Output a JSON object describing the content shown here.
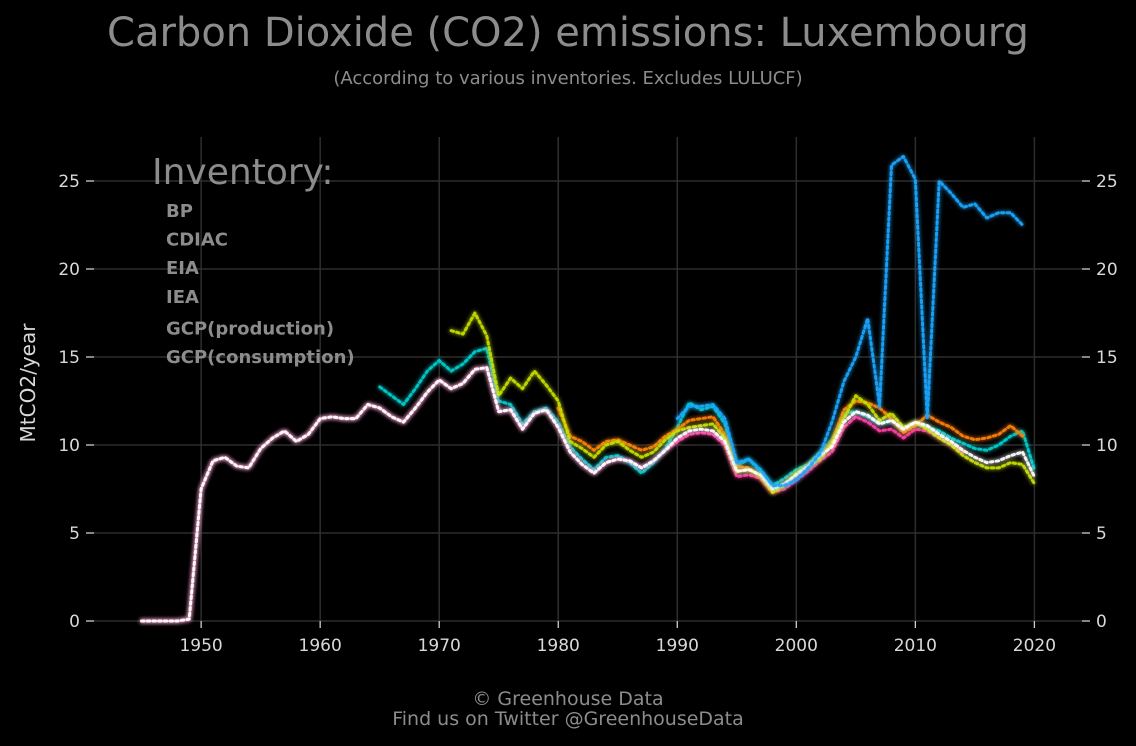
{
  "header": {
    "title": "Carbon Dioxide (CO2) emissions: Luxembourg",
    "subtitle": "(According to various inventories. Excludes LULUCF)"
  },
  "footer": {
    "line1": "© Greenhouse Data",
    "line2": "Find us on Twitter @GreenhouseData"
  },
  "chart_data": {
    "type": "line",
    "ylabel": "MtCO2/year",
    "xlim": [
      1941,
      2024
    ],
    "ylim": [
      0,
      27.5
    ],
    "x_ticks": [
      1950,
      1960,
      1970,
      1980,
      1990,
      2000,
      2010,
      2020
    ],
    "y_ticks": [
      0,
      5,
      10,
      15,
      20,
      25
    ],
    "grid": true,
    "line_style": "dotted",
    "legend": {
      "title": "Inventory:",
      "position": "top-left"
    },
    "series": [
      {
        "name": "BP",
        "color": "#00cfcf",
        "x": [
          1965,
          1966,
          1967,
          1968,
          1969,
          1970,
          1971,
          1972,
          1973,
          1974,
          1975,
          1976,
          1977,
          1978,
          1979,
          1980,
          1981,
          1982,
          1983,
          1984,
          1985,
          1986,
          1987,
          1988,
          1989,
          1990,
          1991,
          1992,
          1993,
          1994,
          1995,
          1996,
          1997,
          1998,
          1999,
          2000,
          2001,
          2002,
          2003,
          2004,
          2005,
          2006,
          2007,
          2008,
          2009,
          2010,
          2011,
          2012,
          2013,
          2014,
          2015,
          2016,
          2017,
          2018,
          2019,
          2020
        ],
        "y": [
          13.3,
          12.8,
          12.3,
          13.2,
          14.2,
          14.8,
          14.2,
          14.6,
          15.3,
          15.5,
          12.5,
          12.3,
          11.2,
          11.9,
          12.1,
          11.3,
          9.9,
          9.2,
          8.6,
          9.3,
          9.4,
          9.0,
          8.4,
          9.0,
          9.8,
          11.0,
          12.4,
          12.0,
          12.2,
          11.2,
          8.8,
          9.2,
          8.5,
          7.7,
          8.1,
          8.6,
          8.9,
          9.6,
          10.3,
          11.8,
          11.9,
          11.6,
          11.2,
          11.4,
          10.8,
          11.2,
          11.0,
          10.8,
          10.4,
          10.1,
          9.8,
          9.7,
          10.0,
          10.5,
          10.8,
          8.6
        ]
      },
      {
        "name": "CDIAC",
        "color": "#ff3fa4",
        "x": [
          1945,
          1946,
          1947,
          1948,
          1949,
          1950,
          1951,
          1952,
          1953,
          1954,
          1955,
          1956,
          1957,
          1958,
          1959,
          1960,
          1961,
          1962,
          1963,
          1964,
          1965,
          1966,
          1967,
          1968,
          1969,
          1970,
          1971,
          1972,
          1973,
          1974,
          1975,
          1976,
          1977,
          1978,
          1979,
          1980,
          1981,
          1982,
          1983,
          1984,
          1985,
          1986,
          1987,
          1988,
          1989,
          1990,
          1991,
          1992,
          1993,
          1994,
          1995,
          1996,
          1997,
          1998,
          1999,
          2000,
          2001,
          2002,
          2003,
          2004,
          2005,
          2006,
          2007,
          2008,
          2009,
          2010,
          2011,
          2012,
          2013,
          2014
        ],
        "y": [
          0.0,
          0.0,
          0.0,
          0.0,
          0.1,
          7.5,
          9.1,
          9.3,
          8.8,
          8.7,
          9.8,
          10.4,
          10.8,
          10.2,
          10.6,
          11.5,
          11.6,
          11.5,
          11.5,
          12.3,
          12.1,
          11.6,
          11.3,
          12.1,
          13.0,
          13.7,
          13.2,
          13.5,
          14.3,
          14.4,
          11.9,
          12.0,
          10.9,
          11.8,
          12.0,
          11.0,
          9.6,
          8.9,
          8.4,
          9.0,
          9.2,
          9.1,
          8.7,
          9.1,
          9.7,
          10.2,
          10.6,
          10.7,
          10.6,
          10.0,
          8.2,
          8.3,
          8.1,
          7.3,
          7.5,
          8.0,
          8.5,
          9.1,
          9.6,
          11.0,
          11.6,
          11.3,
          10.8,
          10.9,
          10.4,
          10.9,
          10.8,
          10.4,
          10.0,
          9.6
        ]
      },
      {
        "name": "EIA",
        "color": "#ff7f0e",
        "x": [
          1980,
          1981,
          1982,
          1983,
          1984,
          1985,
          1986,
          1987,
          1988,
          1989,
          1990,
          1991,
          1992,
          1993,
          1994,
          1995,
          1996,
          1997,
          1998,
          1999,
          2000,
          2001,
          2002,
          2003,
          2004,
          2005,
          2006,
          2007,
          2008,
          2009,
          2010,
          2011,
          2012,
          2013,
          2014,
          2015,
          2016,
          2017,
          2018,
          2019
        ],
        "y": [
          12.1,
          10.5,
          10.2,
          9.7,
          10.2,
          10.3,
          10.0,
          9.7,
          9.9,
          10.5,
          10.9,
          11.4,
          11.5,
          11.6,
          10.6,
          8.8,
          8.7,
          8.2,
          7.4,
          7.8,
          8.3,
          8.8,
          9.4,
          10.2,
          12.0,
          12.5,
          12.4,
          12.1,
          11.5,
          10.7,
          11.1,
          11.7,
          11.3,
          11.0,
          10.5,
          10.3,
          10.4,
          10.6,
          11.1,
          10.5
        ]
      },
      {
        "name": "IEA",
        "color": "#c8e000",
        "x": [
          1971,
          1972,
          1973,
          1974,
          1975,
          1976,
          1977,
          1978,
          1979,
          1980,
          1981,
          1982,
          1983,
          1984,
          1985,
          1986,
          1987,
          1988,
          1989,
          1990,
          1991,
          1992,
          1993,
          1994,
          1995,
          1996,
          1997,
          1998,
          1999,
          2000,
          2001,
          2002,
          2003,
          2004,
          2005,
          2006,
          2007,
          2008,
          2009,
          2010,
          2011,
          2012,
          2013,
          2014,
          2015,
          2016,
          2017,
          2018,
          2019,
          2020
        ],
        "y": [
          16.5,
          16.3,
          17.5,
          16.2,
          12.8,
          13.8,
          13.2,
          14.2,
          13.4,
          12.5,
          10.2,
          9.8,
          9.3,
          10.0,
          10.2,
          9.7,
          9.3,
          9.6,
          10.3,
          10.8,
          11.0,
          11.1,
          11.2,
          10.4,
          8.5,
          8.6,
          8.3,
          7.3,
          7.7,
          8.4,
          8.8,
          9.2,
          10.1,
          11.5,
          12.8,
          12.3,
          11.4,
          11.8,
          11.0,
          11.3,
          10.9,
          10.4,
          10.0,
          9.4,
          9.0,
          8.7,
          8.7,
          9.0,
          8.9,
          7.8
        ]
      },
      {
        "name": "GCP(production)",
        "color": "#ffffff",
        "x": [
          1945,
          1946,
          1947,
          1948,
          1949,
          1950,
          1951,
          1952,
          1953,
          1954,
          1955,
          1956,
          1957,
          1958,
          1959,
          1960,
          1961,
          1962,
          1963,
          1964,
          1965,
          1966,
          1967,
          1968,
          1969,
          1970,
          1971,
          1972,
          1973,
          1974,
          1975,
          1976,
          1977,
          1978,
          1979,
          1980,
          1981,
          1982,
          1983,
          1984,
          1985,
          1986,
          1987,
          1988,
          1989,
          1990,
          1991,
          1992,
          1993,
          1994,
          1995,
          1996,
          1997,
          1998,
          1999,
          2000,
          2001,
          2002,
          2003,
          2004,
          2005,
          2006,
          2007,
          2008,
          2009,
          2010,
          2011,
          2012,
          2013,
          2014,
          2015,
          2016,
          2017,
          2018,
          2019,
          2020
        ],
        "y": [
          0.0,
          0.0,
          0.0,
          0.0,
          0.1,
          7.5,
          9.1,
          9.3,
          8.8,
          8.7,
          9.8,
          10.4,
          10.8,
          10.2,
          10.6,
          11.5,
          11.6,
          11.5,
          11.5,
          12.3,
          12.1,
          11.6,
          11.3,
          12.1,
          13.0,
          13.7,
          13.2,
          13.5,
          14.3,
          14.4,
          11.9,
          12.0,
          10.9,
          11.8,
          12.0,
          11.0,
          9.6,
          8.9,
          8.4,
          9.0,
          9.2,
          9.1,
          8.7,
          9.1,
          9.7,
          10.4,
          10.8,
          10.9,
          10.8,
          10.2,
          8.5,
          8.6,
          8.3,
          7.5,
          7.8,
          8.3,
          8.8,
          9.4,
          9.9,
          11.3,
          11.9,
          11.7,
          11.2,
          11.4,
          10.9,
          11.3,
          11.1,
          10.6,
          10.2,
          9.7,
          9.3,
          9.0,
          9.1,
          9.4,
          9.6,
          8.2
        ]
      },
      {
        "name": "GCP(consumption)",
        "color": "#1ea7ff",
        "x": [
          1990,
          1991,
          1992,
          1993,
          1994,
          1995,
          1996,
          1997,
          1998,
          1999,
          2000,
          2001,
          2002,
          2003,
          2004,
          2005,
          2006,
          2007,
          2008,
          2009,
          2010,
          2011,
          2012,
          2013,
          2014,
          2015,
          2016,
          2017,
          2018,
          2019
        ],
        "y": [
          11.5,
          12.2,
          12.2,
          12.3,
          11.5,
          9.0,
          9.2,
          8.6,
          7.7,
          7.7,
          8.0,
          8.7,
          9.5,
          11.3,
          13.6,
          15.0,
          17.2,
          12.2,
          25.9,
          26.4,
          25.1,
          11.5,
          25.0,
          24.3,
          23.5,
          23.7,
          22.9,
          23.2,
          23.2,
          22.5
        ]
      }
    ]
  }
}
